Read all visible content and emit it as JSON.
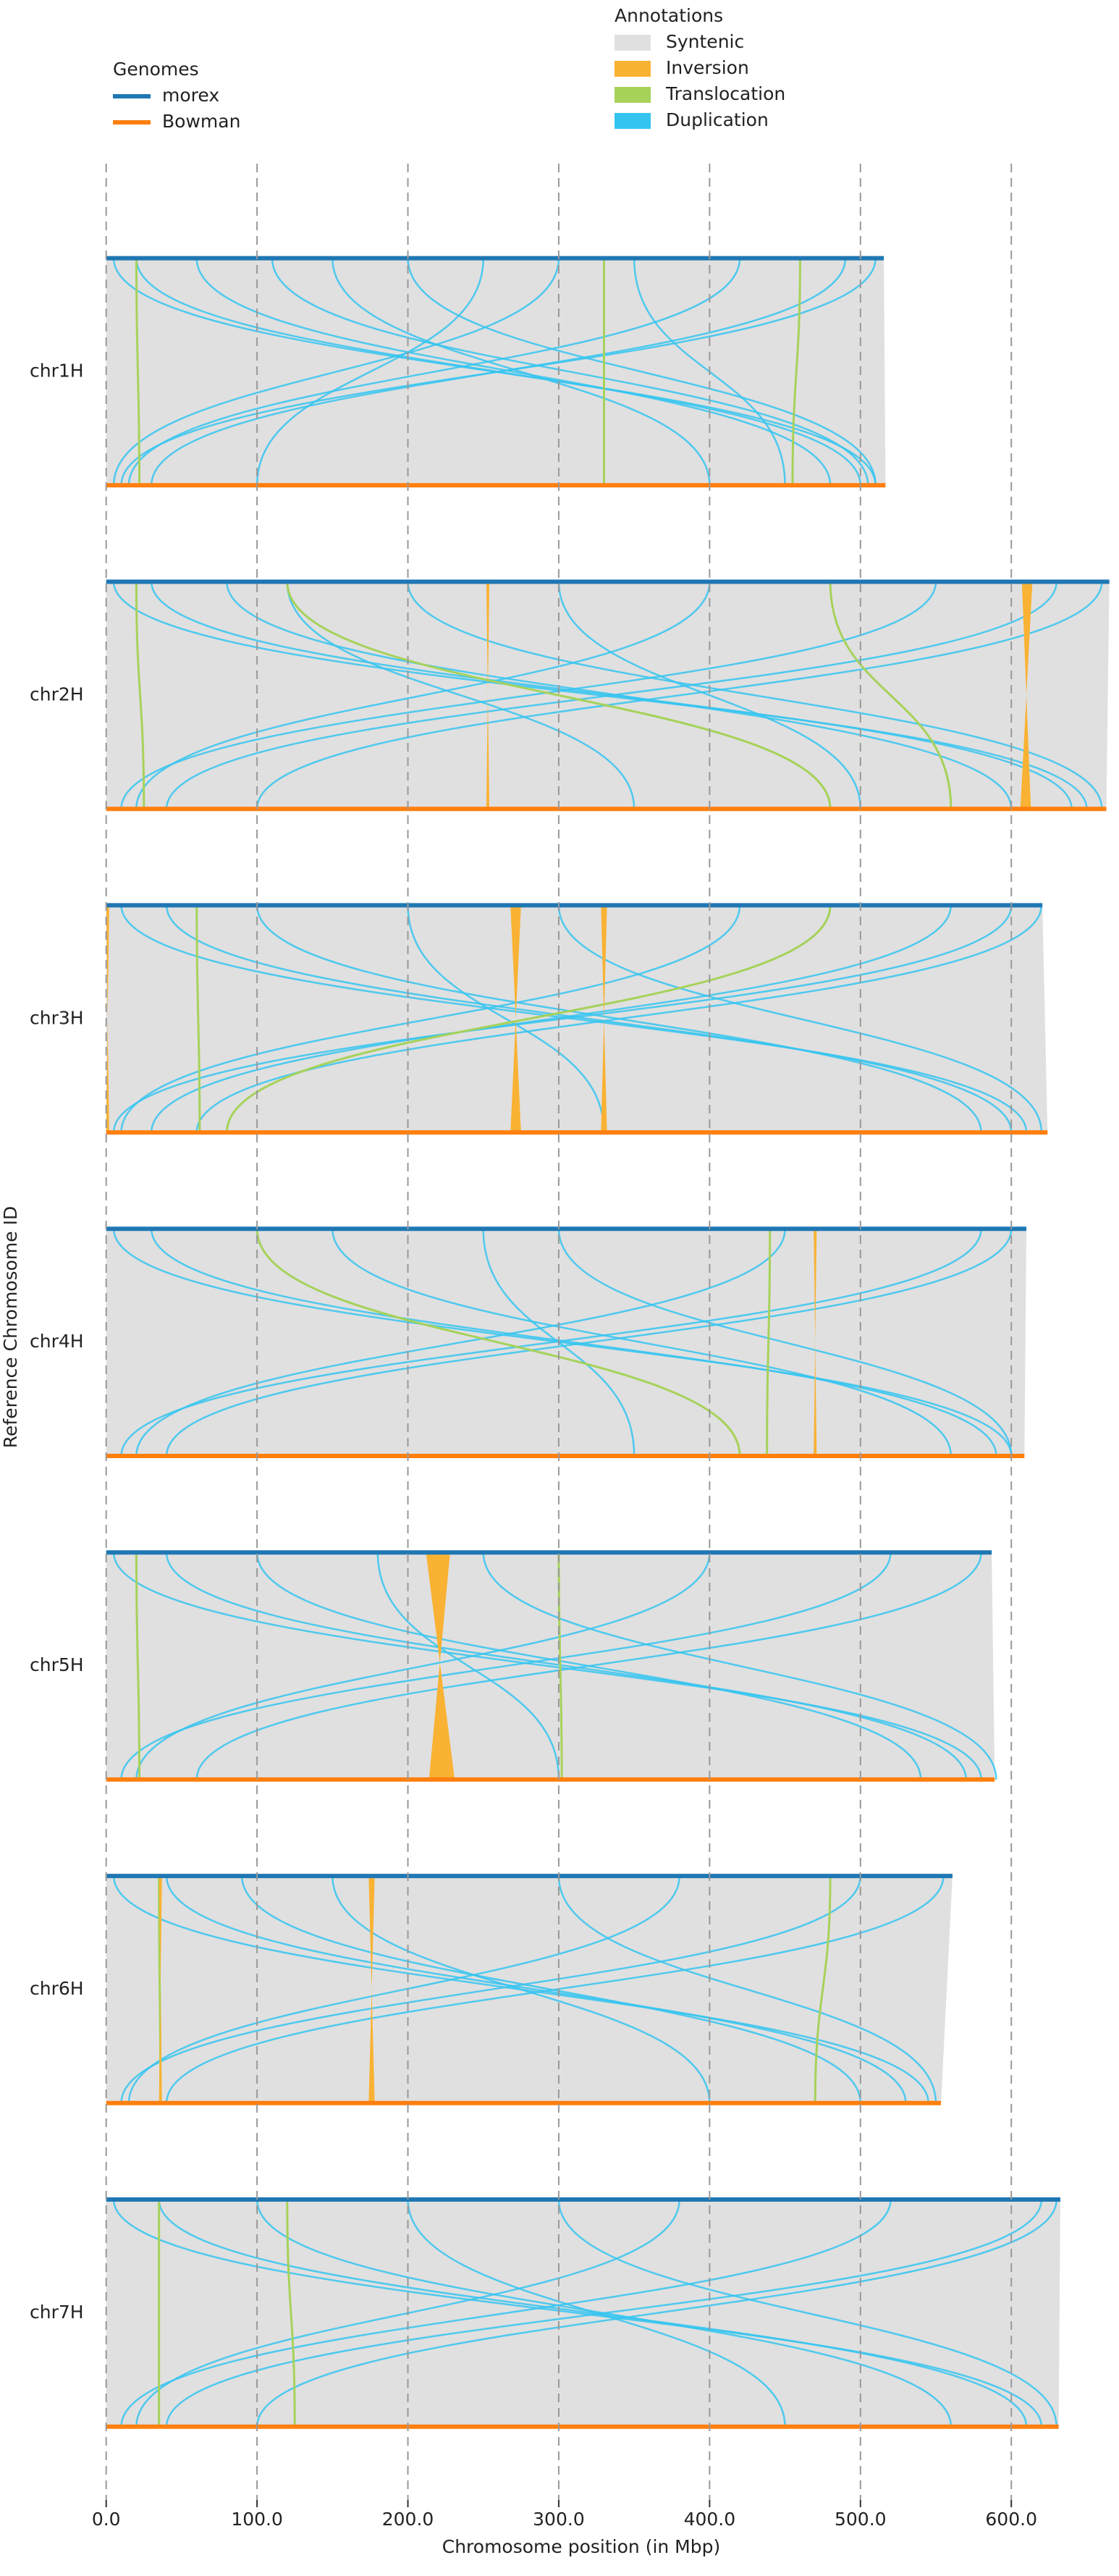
{
  "chart_data": {
    "type": "synteny",
    "ylabel": "Reference Chromosome ID",
    "xlabel": "Chromosome position (in Mbp)",
    "legend_title": "Genomes",
    "annotations_title": "Annotations",
    "categories": [
      "chr1H",
      "chr2H",
      "chr3H",
      "chr4H",
      "chr5H",
      "chr6H",
      "chr7H"
    ],
    "series": [
      {
        "name": "morex",
        "color": "#1f77b4",
        "values": [
          515.5,
          665,
          620.6,
          610,
          587,
          561,
          632.5
        ]
      },
      {
        "name": "Bowman",
        "color": "#ff7f0e",
        "values": [
          516.6,
          663,
          624,
          608.7,
          589,
          553.4,
          631.4
        ]
      }
    ],
    "annotations": [
      {
        "name": "Syntenic",
        "color": "#e0e0e0"
      },
      {
        "name": "Inversion",
        "color": "#f9b233"
      },
      {
        "name": "Translocation",
        "color": "#a6d25a"
      },
      {
        "name": "Duplication",
        "color": "#35c4f0"
      }
    ],
    "links": [
      {
        "inversion": [],
        "translocation": [
          [
            330,
            330
          ],
          [
            460,
            455
          ],
          [
            20,
            22
          ]
        ],
        "duplication": [
          [
            5,
            510
          ],
          [
            20,
            500
          ],
          [
            60,
            480
          ],
          [
            110,
            505
          ],
          [
            200,
            510
          ],
          [
            300,
            5
          ],
          [
            420,
            15
          ],
          [
            490,
            30
          ],
          [
            510,
            10
          ],
          [
            250,
            100
          ],
          [
            150,
            400
          ],
          [
            350,
            450
          ]
        ]
      },
      {
        "inversion": [
          [
            607,
            614,
            606,
            613
          ],
          [
            252,
            254,
            252,
            254
          ]
        ],
        "translocation": [
          [
            120,
            480
          ],
          [
            480,
            560
          ],
          [
            20,
            25
          ]
        ],
        "duplication": [
          [
            5,
            650
          ],
          [
            30,
            640
          ],
          [
            80,
            600
          ],
          [
            200,
            660
          ],
          [
            400,
            20
          ],
          [
            550,
            10
          ],
          [
            630,
            40
          ],
          [
            660,
            100
          ],
          [
            300,
            500
          ],
          [
            120,
            350
          ]
        ]
      },
      {
        "inversion": [
          [
            268,
            275,
            268,
            275
          ],
          [
            328,
            332,
            328,
            332
          ],
          [
            0,
            2,
            0,
            2
          ]
        ],
        "translocation": [
          [
            480,
            80
          ],
          [
            60,
            62
          ]
        ],
        "duplication": [
          [
            10,
            610
          ],
          [
            40,
            600
          ],
          [
            100,
            580
          ],
          [
            300,
            620
          ],
          [
            420,
            10
          ],
          [
            560,
            30
          ],
          [
            600,
            5
          ],
          [
            620,
            60
          ],
          [
            200,
            330
          ]
        ]
      },
      {
        "inversion": [
          [
            469,
            471,
            469,
            471
          ]
        ],
        "translocation": [
          [
            440,
            438
          ],
          [
            100,
            420
          ]
        ],
        "duplication": [
          [
            5,
            600
          ],
          [
            30,
            590
          ],
          [
            150,
            560
          ],
          [
            300,
            600
          ],
          [
            450,
            20
          ],
          [
            580,
            10
          ],
          [
            600,
            40
          ],
          [
            250,
            350
          ]
        ]
      },
      {
        "inversion": [
          [
            212,
            228,
            214,
            231
          ]
        ],
        "translocation": [
          [
            20,
            22
          ],
          [
            300,
            302
          ]
        ],
        "duplication": [
          [
            5,
            580
          ],
          [
            40,
            570
          ],
          [
            100,
            540
          ],
          [
            250,
            590
          ],
          [
            400,
            20
          ],
          [
            520,
            10
          ],
          [
            580,
            60
          ],
          [
            180,
            300
          ]
        ]
      },
      {
        "inversion": [
          [
            174,
            178,
            174,
            178
          ],
          [
            35,
            37,
            35,
            37
          ]
        ],
        "translocation": [
          [
            35,
            36
          ],
          [
            480,
            470
          ]
        ],
        "duplication": [
          [
            5,
            545
          ],
          [
            40,
            530
          ],
          [
            90,
            500
          ],
          [
            300,
            550
          ],
          [
            380,
            15
          ],
          [
            500,
            10
          ],
          [
            555,
            40
          ],
          [
            150,
            400
          ]
        ]
      },
      {
        "inversion": [],
        "translocation": [
          [
            35,
            35
          ],
          [
            120,
            125
          ]
        ],
        "duplication": [
          [
            5,
            620
          ],
          [
            35,
            610
          ],
          [
            100,
            560
          ],
          [
            300,
            630
          ],
          [
            380,
            20
          ],
          [
            520,
            10
          ],
          [
            620,
            40
          ],
          [
            630,
            100
          ],
          [
            200,
            450
          ]
        ]
      }
    ],
    "xlim": [
      0,
      600
    ],
    "xticks": [
      {
        "value": 0,
        "label": "0.0"
      },
      {
        "value": 100,
        "label": "100.0"
      },
      {
        "value": 200,
        "label": "200.0"
      },
      {
        "value": 300,
        "label": "300.0"
      },
      {
        "value": 400,
        "label": "400.0"
      },
      {
        "value": 500,
        "label": "500.0"
      },
      {
        "value": 600,
        "label": "600.0"
      }
    ],
    "grid": true
  }
}
